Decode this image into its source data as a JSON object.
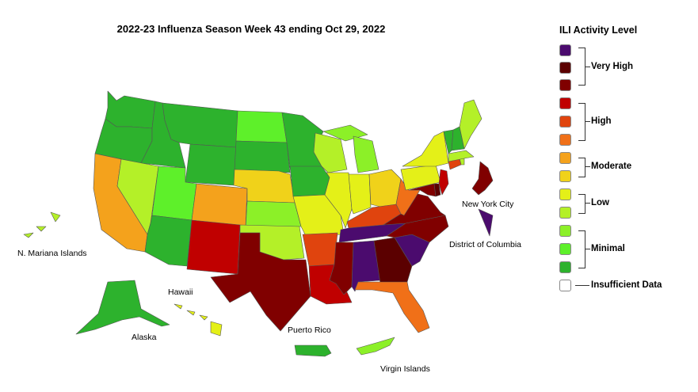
{
  "title": "2022-23 Influenza Season Week 43 ending Oct 29, 2022",
  "colors": {
    "lvl13": "#4b0b6e",
    "lvl12": "#5b0000",
    "lvl11": "#800000",
    "lvl10": "#c00000",
    "lvl9": "#e0440e",
    "lvl8": "#f07018",
    "lvl7": "#f4a21c",
    "lvl6": "#f0d21a",
    "lvl5": "#e4f018",
    "lvl4": "#b4f028",
    "lvl3": "#8cf028",
    "lvl2": "#5ef02a",
    "lvl1": "#2db22d",
    "none": "#ffffff"
  },
  "legend": {
    "title": "ILI Activity Level",
    "groups": {
      "very_high": "Very High",
      "high": "High",
      "moderate": "Moderate",
      "low": "Low",
      "minimal": "Minimal",
      "insufficient": "Insufficient Data"
    }
  },
  "labels": {
    "n_mariana": "N. Mariana Islands",
    "hawaii": "Hawaii",
    "alaska": "Alaska",
    "puerto_rico": "Puerto Rico",
    "virgin_islands": "Virgin Islands",
    "new_york_city": "New York City",
    "dc": "District of Columbia"
  },
  "regions": {
    "WA": "lvl1",
    "OR": "lvl1",
    "ID": "lvl1",
    "MT": "lvl1",
    "WY": "lvl1",
    "ND": "lvl2",
    "SD": "lvl1",
    "MN": "lvl1",
    "IA": "lvl1",
    "WI": "lvl4",
    "MI": "lvl3",
    "NE": "lvl6",
    "KS": "lvl3",
    "OK": "lvl4",
    "MO": "lvl5",
    "IL": "lvl5",
    "IN": "lvl5",
    "OH": "lvl6",
    "KY": "lvl9",
    "TN": "lvl13",
    "AR": "lvl9",
    "LA": "lvl10",
    "MS": "lvl11",
    "AL": "lvl13",
    "GA": "lvl12",
    "FL": "lvl8",
    "SC": "lvl13",
    "NC": "lvl11",
    "VA": "lvl11",
    "WV": "lvl8",
    "PA": "lvl5",
    "NY": "lvl5",
    "VT": "lvl1",
    "NH": "lvl1",
    "ME": "lvl4",
    "MA": "lvl4",
    "CT": "lvl9",
    "RI": "lvl4",
    "NJ": "lvl10",
    "DE": "lvl12",
    "MD": "lvl11",
    "CA": "lvl7",
    "NV": "lvl4",
    "UT": "lvl2",
    "AZ": "lvl1",
    "CO": "lvl7",
    "NM": "lvl10",
    "TX": "lvl11",
    "AK": "lvl1",
    "HI": "lvl5",
    "PR": "lvl1",
    "VI": "lvl3",
    "MP": "lvl4",
    "NYC": "lvl11",
    "DC": "lvl13"
  }
}
